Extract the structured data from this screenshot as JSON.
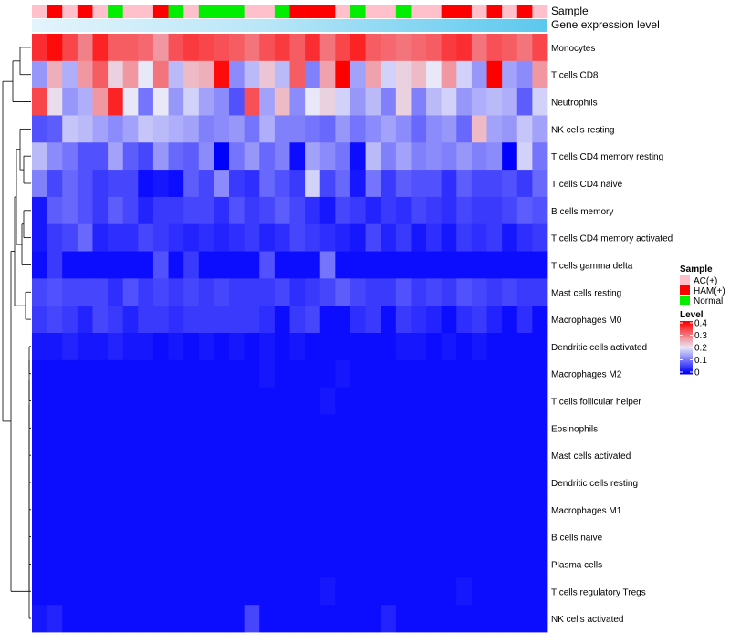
{
  "chart_data": {
    "type": "heatmap",
    "annotations": {
      "sample_title": "Sample",
      "expression_title": "Gene expression level"
    },
    "sample_groups": [
      "AC(+)",
      "HAM(+)",
      "AC(+)",
      "HAM(+)",
      "AC(+)",
      "Normal",
      "AC(+)",
      "AC(+)",
      "HAM(+)",
      "Normal",
      "AC(+)",
      "Normal",
      "Normal",
      "Normal",
      "AC(+)",
      "AC(+)",
      "Normal",
      "HAM(+)",
      "HAM(+)",
      "HAM(+)",
      "AC(+)",
      "Normal",
      "AC(+)",
      "AC(+)",
      "Normal",
      "AC(+)",
      "AC(+)",
      "HAM(+)",
      "HAM(+)",
      "AC(+)",
      "HAM(+)",
      "AC(+)",
      "HAM(+)",
      "AC(+)"
    ],
    "rows": [
      "Monocytes",
      "T cells CD8",
      "Neutrophils",
      "NK cells resting",
      "T cells CD4 memory resting",
      "T cells CD4 naive",
      "B cells memory",
      "T cells CD4 memory activated",
      "T cells gamma delta",
      "Mast cells resting",
      "Macrophages M0",
      "Dendritic cells activated",
      "Macrophages M2",
      "T cells follicular helper",
      "Eosinophils",
      "Mast cells activated",
      "Dendritic cells resting",
      "Macrophages M1",
      "B cells naive",
      "Plasma cells",
      "T cells regulatory  Tregs",
      "NK cells activated"
    ],
    "values": [
      [
        0.36,
        0.39,
        0.34,
        0.29,
        0.37,
        0.32,
        0.32,
        0.31,
        0.27,
        0.33,
        0.35,
        0.34,
        0.33,
        0.32,
        0.3,
        0.33,
        0.35,
        0.32,
        0.36,
        0.3,
        0.34,
        0.37,
        0.32,
        0.31,
        0.3,
        0.31,
        0.32,
        0.35,
        0.36,
        0.3,
        0.33,
        0.32,
        0.3,
        0.34
      ],
      [
        0.13,
        0.25,
        0.15,
        0.27,
        0.32,
        0.22,
        0.27,
        0.2,
        0.3,
        0.16,
        0.24,
        0.25,
        0.39,
        0.12,
        0.16,
        0.23,
        0.16,
        0.32,
        0.11,
        0.26,
        0.4,
        0.14,
        0.26,
        0.18,
        0.22,
        0.24,
        0.2,
        0.27,
        0.18,
        0.13,
        0.4,
        0.14,
        0.12,
        0.27
      ],
      [
        0.34,
        0.21,
        0.13,
        0.15,
        0.27,
        0.37,
        0.2,
        0.1,
        0.2,
        0.13,
        0.18,
        0.14,
        0.12,
        0.07,
        0.33,
        0.14,
        0.24,
        0.12,
        0.2,
        0.22,
        0.18,
        0.13,
        0.16,
        0.11,
        0.22,
        0.11,
        0.16,
        0.18,
        0.13,
        0.15,
        0.16,
        0.15,
        0.08,
        0.18
      ],
      [
        0.07,
        0.08,
        0.17,
        0.16,
        0.14,
        0.12,
        0.14,
        0.17,
        0.16,
        0.15,
        0.14,
        0.11,
        0.12,
        0.13,
        0.1,
        0.15,
        0.11,
        0.11,
        0.1,
        0.09,
        0.13,
        0.1,
        0.12,
        0.14,
        0.12,
        0.09,
        0.12,
        0.13,
        0.09,
        0.24,
        0.14,
        0.13,
        0.17,
        0.14
      ],
      [
        0.16,
        0.12,
        0.1,
        0.07,
        0.07,
        0.14,
        0.08,
        0.06,
        0.13,
        0.09,
        0.08,
        0.12,
        0.0,
        0.1,
        0.13,
        0.09,
        0.11,
        0.01,
        0.14,
        0.12,
        0.1,
        0.01,
        0.16,
        0.11,
        0.14,
        0.11,
        0.12,
        0.11,
        0.13,
        0.11,
        0.12,
        0.0,
        0.18,
        0.1
      ],
      [
        0.11,
        0.06,
        0.09,
        0.07,
        0.05,
        0.06,
        0.06,
        0.01,
        0.02,
        0.01,
        0.08,
        0.06,
        0.12,
        0.05,
        0.04,
        0.09,
        0.07,
        0.05,
        0.18,
        0.06,
        0.09,
        0.02,
        0.1,
        0.05,
        0.08,
        0.07,
        0.07,
        0.04,
        0.08,
        0.06,
        0.06,
        0.07,
        0.05,
        0.09
      ],
      [
        0.02,
        0.08,
        0.09,
        0.07,
        0.05,
        0.08,
        0.06,
        0.03,
        0.05,
        0.05,
        0.06,
        0.06,
        0.04,
        0.07,
        0.05,
        0.06,
        0.08,
        0.06,
        0.04,
        0.02,
        0.06,
        0.05,
        0.03,
        0.05,
        0.04,
        0.06,
        0.05,
        0.04,
        0.06,
        0.05,
        0.05,
        0.06,
        0.08,
        0.07
      ],
      [
        0.02,
        0.05,
        0.06,
        0.09,
        0.03,
        0.04,
        0.04,
        0.06,
        0.05,
        0.04,
        0.03,
        0.04,
        0.03,
        0.04,
        0.05,
        0.03,
        0.04,
        0.06,
        0.05,
        0.04,
        0.03,
        0.02,
        0.06,
        0.03,
        0.05,
        0.02,
        0.04,
        0.02,
        0.05,
        0.04,
        0.05,
        0.02,
        0.04,
        0.05
      ],
      [
        0.01,
        0.05,
        0.01,
        0.01,
        0.01,
        0.01,
        0.01,
        0.01,
        0.07,
        0.01,
        0.05,
        0.01,
        0.01,
        0.01,
        0.01,
        0.07,
        0.01,
        0.01,
        0.01,
        0.1,
        0.01,
        0.01,
        0.01,
        0.01,
        0.01,
        0.01,
        0.01,
        0.01,
        0.01,
        0.01,
        0.01,
        0.01,
        0.01,
        0.01
      ],
      [
        0.06,
        0.07,
        0.06,
        0.06,
        0.06,
        0.04,
        0.07,
        0.05,
        0.06,
        0.05,
        0.06,
        0.05,
        0.06,
        0.05,
        0.05,
        0.05,
        0.06,
        0.04,
        0.05,
        0.06,
        0.08,
        0.06,
        0.05,
        0.05,
        0.07,
        0.05,
        0.06,
        0.05,
        0.07,
        0.06,
        0.05,
        0.06,
        0.05,
        0.05
      ],
      [
        0.05,
        0.06,
        0.05,
        0.03,
        0.06,
        0.05,
        0.03,
        0.05,
        0.05,
        0.04,
        0.05,
        0.05,
        0.05,
        0.05,
        0.05,
        0.04,
        0.01,
        0.05,
        0.06,
        0.01,
        0.01,
        0.04,
        0.05,
        0.01,
        0.05,
        0.04,
        0.03,
        0.01,
        0.04,
        0.05,
        0.03,
        0.01,
        0.04,
        0.01
      ],
      [
        0.02,
        0.02,
        0.03,
        0.02,
        0.02,
        0.03,
        0.02,
        0.02,
        0.01,
        0.02,
        0.01,
        0.02,
        0.01,
        0.02,
        0.01,
        0.02,
        0.01,
        0.02,
        0.01,
        0.01,
        0.01,
        0.01,
        0.01,
        0.01,
        0.02,
        0.02,
        0.01,
        0.02,
        0.01,
        0.02,
        0.01,
        0.01,
        0.01,
        0.01
      ],
      [
        0.01,
        0.01,
        0.01,
        0.01,
        0.01,
        0.01,
        0.01,
        0.01,
        0.01,
        0.01,
        0.01,
        0.01,
        0.01,
        0.01,
        0.01,
        0.02,
        0.01,
        0.01,
        0.01,
        0.01,
        0.02,
        0.01,
        0.01,
        0.01,
        0.01,
        0.01,
        0.01,
        0.01,
        0.01,
        0.01,
        0.01,
        0.01,
        0.01,
        0.01
      ],
      [
        0.01,
        0.01,
        0.01,
        0.01,
        0.01,
        0.01,
        0.01,
        0.01,
        0.01,
        0.01,
        0.01,
        0.01,
        0.01,
        0.01,
        0.01,
        0.01,
        0.01,
        0.01,
        0.01,
        0.02,
        0.01,
        0.01,
        0.01,
        0.01,
        0.01,
        0.01,
        0.01,
        0.01,
        0.01,
        0.01,
        0.01,
        0.01,
        0.01,
        0.01
      ],
      [
        0.01,
        0.01,
        0.01,
        0.01,
        0.01,
        0.01,
        0.01,
        0.01,
        0.01,
        0.01,
        0.01,
        0.01,
        0.01,
        0.01,
        0.01,
        0.01,
        0.01,
        0.01,
        0.01,
        0.01,
        0.01,
        0.01,
        0.01,
        0.01,
        0.01,
        0.01,
        0.01,
        0.01,
        0.01,
        0.01,
        0.01,
        0.01,
        0.01,
        0.01
      ],
      [
        0.01,
        0.01,
        0.01,
        0.01,
        0.01,
        0.01,
        0.01,
        0.01,
        0.01,
        0.01,
        0.01,
        0.01,
        0.01,
        0.01,
        0.01,
        0.01,
        0.01,
        0.01,
        0.01,
        0.01,
        0.01,
        0.01,
        0.01,
        0.01,
        0.01,
        0.01,
        0.01,
        0.01,
        0.01,
        0.01,
        0.01,
        0.01,
        0.01,
        0.01
      ],
      [
        0.01,
        0.01,
        0.01,
        0.01,
        0.01,
        0.01,
        0.01,
        0.01,
        0.01,
        0.01,
        0.01,
        0.01,
        0.01,
        0.01,
        0.01,
        0.01,
        0.01,
        0.01,
        0.01,
        0.01,
        0.01,
        0.01,
        0.01,
        0.01,
        0.01,
        0.01,
        0.01,
        0.01,
        0.01,
        0.01,
        0.01,
        0.01,
        0.01,
        0.01
      ],
      [
        0.01,
        0.01,
        0.01,
        0.01,
        0.01,
        0.01,
        0.01,
        0.01,
        0.01,
        0.01,
        0.01,
        0.01,
        0.01,
        0.01,
        0.01,
        0.01,
        0.01,
        0.01,
        0.01,
        0.01,
        0.01,
        0.01,
        0.01,
        0.01,
        0.01,
        0.01,
        0.01,
        0.01,
        0.01,
        0.01,
        0.01,
        0.01,
        0.01,
        0.01
      ],
      [
        0.01,
        0.01,
        0.01,
        0.01,
        0.01,
        0.01,
        0.01,
        0.01,
        0.01,
        0.01,
        0.01,
        0.01,
        0.01,
        0.01,
        0.01,
        0.01,
        0.01,
        0.01,
        0.01,
        0.01,
        0.01,
        0.01,
        0.01,
        0.01,
        0.01,
        0.01,
        0.01,
        0.01,
        0.01,
        0.01,
        0.01,
        0.01,
        0.01,
        0.01
      ],
      [
        0.01,
        0.01,
        0.01,
        0.01,
        0.01,
        0.01,
        0.01,
        0.01,
        0.01,
        0.01,
        0.01,
        0.01,
        0.01,
        0.01,
        0.01,
        0.01,
        0.01,
        0.01,
        0.01,
        0.01,
        0.01,
        0.01,
        0.01,
        0.01,
        0.01,
        0.01,
        0.01,
        0.01,
        0.01,
        0.01,
        0.01,
        0.01,
        0.01,
        0.01
      ],
      [
        0.01,
        0.01,
        0.01,
        0.01,
        0.01,
        0.01,
        0.01,
        0.01,
        0.01,
        0.01,
        0.01,
        0.01,
        0.01,
        0.01,
        0.01,
        0.01,
        0.01,
        0.01,
        0.01,
        0.02,
        0.01,
        0.01,
        0.01,
        0.01,
        0.01,
        0.01,
        0.01,
        0.01,
        0.02,
        0.01,
        0.01,
        0.01,
        0.01,
        0.01
      ],
      [
        0.02,
        0.03,
        0.01,
        0.01,
        0.01,
        0.01,
        0.01,
        0.01,
        0.01,
        0.01,
        0.01,
        0.01,
        0.01,
        0.01,
        0.06,
        0.01,
        0.01,
        0.01,
        0.01,
        0.01,
        0.01,
        0.01,
        0.01,
        0.03,
        0.01,
        0.01,
        0.01,
        0.01,
        0.01,
        0.01,
        0.01,
        0.01,
        0.01,
        0.01
      ]
    ],
    "legend_sample": {
      "title": "Sample",
      "items": [
        {
          "label": "AC(+)",
          "color": "#ffc0cb"
        },
        {
          "label": "HAM(+)",
          "color": "#ff0000"
        },
        {
          "label": "Normal",
          "color": "#00ee00"
        }
      ]
    },
    "legend_level": {
      "title": "Level",
      "ticks": [
        "0.4",
        "0.3",
        "0.2",
        "0.1",
        "0"
      ],
      "range": [
        0,
        0.4
      ]
    },
    "colors": {
      "low": "#0000ff",
      "mid": "#e8e8f8",
      "high": "#ff0000",
      "expression_bar": "#5bc8ee",
      "expression_bar_light": "#e3f4fc"
    }
  }
}
